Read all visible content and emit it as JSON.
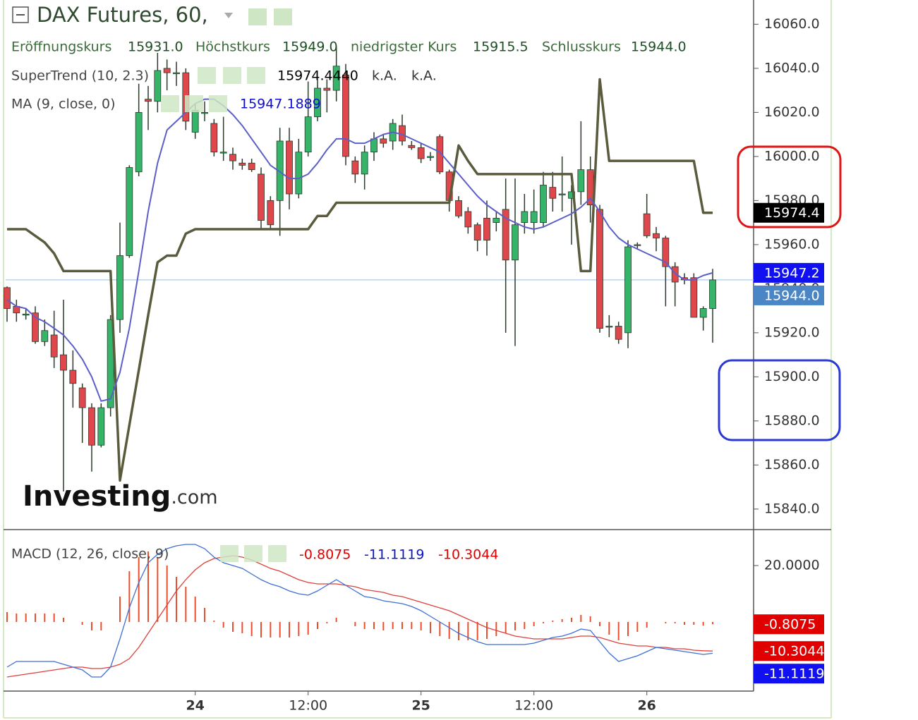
{
  "header": {
    "title": "DAX Futures, 60,",
    "ohlc": [
      {
        "label": "Eröffnungskurs",
        "value_label": "15931.0"
      },
      {
        "label": "Höchstkurs",
        "value_label": "15949.0"
      },
      {
        "label": "niedrigster Kurs",
        "value_label": "15915.5"
      },
      {
        "label": "Schlusskurs",
        "value_label": "15944.0"
      }
    ]
  },
  "watermark": {
    "brand": "Investing",
    "suffix": ".com"
  },
  "chart_data": [
    {
      "type": "candlestick",
      "categories": [
        null,
        null,
        null,
        null,
        null,
        null,
        null,
        null,
        null,
        null,
        null,
        null,
        null,
        null,
        null,
        null,
        null,
        null,
        null,
        null,
        "24",
        null,
        null,
        null,
        null,
        null,
        null,
        null,
        null,
        null,
        null,
        null,
        "12:00",
        null,
        null,
        null,
        null,
        null,
        null,
        null,
        null,
        null,
        null,
        null,
        "25",
        null,
        null,
        null,
        null,
        null,
        null,
        null,
        null,
        null,
        null,
        null,
        "12:00",
        null,
        null,
        null,
        null,
        null,
        null,
        null,
        null,
        null,
        null,
        null,
        "26",
        null,
        null,
        null,
        null,
        null,
        null,
        null
      ],
      "open": [
        15940.5,
        15932,
        15928,
        15929,
        15916,
        15919,
        15910,
        15903,
        15895,
        15886,
        15869,
        15886,
        15926,
        15955,
        15993,
        16026,
        16025,
        16040,
        16038,
        16038,
        16011,
        16020,
        16015,
        16002,
        16001,
        15997,
        15997,
        15992,
        15980,
        15980,
        16007,
        15983,
        16002,
        16018,
        16031,
        16030,
        16037,
        15998,
        15992,
        16002,
        16008,
        16007,
        16014,
        16005,
        16004,
        16000,
        16009,
        15993,
        15980,
        15975,
        15969,
        15972,
        15970,
        15976,
        15953,
        15970,
        15970,
        15970,
        15986,
        15983,
        15981,
        15984,
        15994,
        15976,
        15923,
        15923,
        15920,
        15960,
        15974,
        15965,
        15963,
        15950,
        15945,
        15945,
        15927,
        15931
      ],
      "high": [
        15941,
        15935,
        15931,
        15932,
        15926,
        15930,
        15935,
        15912,
        15897,
        15888,
        15888,
        15928,
        15970,
        15996,
        16033,
        16032,
        16047,
        16044,
        16043,
        16040,
        16024,
        16025,
        16017,
        16018,
        16004,
        15999,
        15999,
        15995,
        15982,
        16013,
        16013,
        16008,
        16034,
        16035,
        16035,
        16050,
        16042,
        16000,
        16005,
        16011,
        16010,
        16017,
        16019,
        16007,
        16006,
        16002,
        16010,
        15994,
        15982,
        15977,
        15970,
        15980,
        15975,
        15990,
        15990,
        15983,
        15985,
        15993,
        15993,
        16000,
        15987,
        16016,
        16000,
        15978,
        15928,
        15925,
        15962,
        15961,
        15983,
        15968,
        15964,
        15952,
        15947,
        15947,
        15932,
        15949
      ],
      "low": [
        15925,
        15925,
        15926,
        15915,
        15914,
        15904,
        15848,
        15886,
        15870,
        15857,
        15868,
        15882,
        15920,
        15954,
        15991,
        16012,
        16020,
        16030,
        16032,
        16012,
        16008,
        16016,
        16000,
        15998,
        15994,
        15994,
        15993,
        15967,
        15967,
        15964,
        15976,
        15981,
        16000,
        16016,
        16020,
        16025,
        15996,
        15988,
        15985,
        15998,
        16004,
        16003,
        16005,
        16003,
        15997,
        15998,
        15992,
        15975,
        15972,
        15965,
        15957,
        15955,
        15966,
        15920,
        15914,
        15965,
        15965,
        15968,
        15975,
        15975,
        15960,
        15978,
        15970,
        15920,
        15918,
        15915,
        15913,
        15958,
        15963,
        15957,
        15932,
        15932,
        15942,
        15927,
        15921,
        15915.5
      ],
      "close": [
        15931,
        15929,
        15928.5,
        15916,
        15921,
        15909,
        15903,
        15897,
        15886,
        15869,
        15886,
        15926,
        15955,
        15995,
        16020,
        16025,
        16039,
        16038,
        16038,
        16016,
        16021,
        16020,
        16002,
        16002,
        15998,
        15996,
        15994,
        15971,
        15969,
        16007,
        15983,
        16002,
        16018,
        16031,
        16030,
        16041,
        16000,
        15992,
        16002,
        16008,
        16006,
        16015,
        16007,
        16004,
        15999,
        16000,
        15993,
        15980,
        15973,
        15968,
        15962,
        15962,
        15972,
        15953,
        15969,
        15975,
        15975,
        15987,
        15981,
        15983,
        15984,
        15994,
        15978,
        15922,
        15923,
        15917,
        15959,
        15960,
        15964,
        15963,
        15950,
        15943,
        15944,
        15927,
        15931,
        15944
      ],
      "up_color": "#35b46a",
      "down_color": "#e0474c",
      "close_last_label": "15944.0",
      "close_tag_color": "#4a86c5",
      "series": [
        {
          "name": "SuperTrend (10, 2.3)",
          "color": "#5a5a3c",
          "tag_color": "#000000",
          "values": [
            15967,
            15967,
            15967,
            15964,
            15961,
            15956,
            15948,
            15948,
            15948,
            15948,
            15948,
            15948,
            15853,
            15878,
            15903,
            15928,
            15952,
            15955,
            15955,
            15965,
            15967,
            15967,
            15967,
            15967,
            15967,
            15967,
            15967,
            15967,
            15967,
            15967,
            15967,
            15967,
            15967,
            15973,
            15973,
            15979,
            15979,
            15979,
            15979,
            15979,
            15979,
            15979,
            15979,
            15979,
            15979,
            15979,
            15979,
            15979,
            16005,
            15998,
            15992,
            15992,
            15992,
            15992,
            15992,
            15992,
            15992,
            15992,
            15992,
            15992,
            15992,
            15948,
            15948,
            16035,
            15998,
            15998,
            15998,
            15998,
            15998,
            15998,
            15998,
            15998,
            15998,
            15998,
            15974.444,
            15974.444
          ],
          "readouts": [
            "15974.4440",
            "k.A.",
            "k.A."
          ],
          "last_label": "15974.4"
        },
        {
          "name": "MA (9, close, 0)",
          "color": "#5b5fc7",
          "tag_color": "#1010f0",
          "values": [
            15935,
            15932,
            15931,
            15927,
            15925,
            15922,
            15919,
            15914,
            15908,
            15900,
            15889,
            15890,
            15902,
            15922,
            15948,
            15975,
            15997,
            16012,
            16016,
            16020,
            16024,
            16026,
            16026,
            16023,
            16019,
            16014,
            16008,
            16002,
            15996,
            15993,
            15990,
            15990,
            15992,
            15997,
            16003,
            16008,
            16008,
            16006,
            16006,
            16008,
            16010,
            16011,
            16010,
            16008,
            16006,
            16004,
            16002,
            15997,
            15992,
            15987,
            15982,
            15978,
            15975,
            15972,
            15970,
            15968,
            15967,
            15968,
            15970,
            15972,
            15974,
            15977,
            15981,
            15975,
            15968,
            15963,
            15960,
            15958,
            15956,
            15954,
            15952,
            15947,
            15944,
            15944,
            15946,
            15947.1889
          ],
          "readouts": [
            "15947.1889"
          ],
          "last_label": "15947.2"
        }
      ],
      "ylim": [
        15831,
        16071
      ],
      "yticks": [
        {
          "value": 15840,
          "label": "15840.0"
        },
        {
          "value": 15860,
          "label": "15860.0"
        },
        {
          "value": 15880,
          "label": "15880.0"
        },
        {
          "value": 15900,
          "label": "15900.0"
        },
        {
          "value": 15920,
          "label": "15920.0"
        },
        {
          "value": 15940,
          "label": "15940.0"
        },
        {
          "value": 15960,
          "label": "15960.0"
        },
        {
          "value": 15980,
          "label": "15980.0"
        },
        {
          "value": 16000,
          "label": "16000.0"
        },
        {
          "value": 16020,
          "label": "16020.0"
        },
        {
          "value": 16040,
          "label": "16040.0"
        },
        {
          "value": 16060,
          "label": "16060.0"
        }
      ]
    },
    {
      "type": "macd",
      "title": "MACD (12, 26, close, 9)",
      "series": [
        {
          "color": "#3d6fd6",
          "tag_color": "#1010f0",
          "last_label": "-11.1119",
          "values": [
            -16,
            -14,
            -14,
            -14,
            -14,
            -14,
            -15,
            -16,
            -17,
            -19.5,
            -19.5,
            -16,
            -6,
            5,
            14,
            21,
            24,
            26,
            27,
            27.5,
            27.5,
            26,
            23,
            21,
            20,
            19,
            17,
            15,
            13.5,
            12.5,
            11,
            10,
            9.5,
            11,
            13,
            15,
            13,
            11,
            9,
            8.5,
            7.5,
            7,
            6.5,
            5.5,
            4,
            2,
            0,
            -2,
            -4,
            -5.5,
            -7,
            -8,
            -8,
            -8,
            -8,
            -8,
            -7.5,
            -6.5,
            -5.5,
            -5,
            -4,
            -2.5,
            -3,
            -7,
            -11,
            -14,
            -13,
            -12,
            -10.5,
            -9,
            -9.5,
            -10,
            -10.5,
            -11,
            -11.5,
            -11.1119
          ]
        },
        {
          "color": "#e0403a",
          "tag_color": "#e00000",
          "last_label": "-10.3044",
          "values": [
            -19.5,
            -19,
            -18.5,
            -18,
            -17.5,
            -17,
            -16.5,
            -16,
            -16,
            -16.5,
            -16.5,
            -16,
            -15,
            -13,
            -9,
            -4,
            1,
            6,
            11,
            15,
            18.5,
            21,
            22.5,
            23,
            23.5,
            23,
            22,
            20.5,
            19,
            18,
            16.5,
            15,
            14,
            13.5,
            13.5,
            13.5,
            13,
            12.5,
            11.5,
            11,
            10.5,
            9.5,
            9,
            8,
            7,
            6,
            5,
            4,
            2.5,
            1,
            -0.5,
            -2,
            -3,
            -4,
            -5,
            -5.5,
            -6,
            -6,
            -6,
            -6,
            -5.5,
            -5,
            -5,
            -5.5,
            -6.5,
            -7.5,
            -8,
            -8.5,
            -8.5,
            -9,
            -9,
            -9.5,
            -9.5,
            -10,
            -10.2,
            -10.3044
          ]
        },
        {
          "color": "#e8502d",
          "tag_color": "#e00000",
          "last_label": "-0.8075",
          "values": [
            3.5,
            3,
            3,
            3,
            3,
            3,
            1.5,
            0,
            -1,
            -3,
            -3,
            0,
            9,
            18,
            23,
            25,
            23,
            20,
            16,
            12.5,
            9,
            5,
            0.5,
            -2,
            -3.5,
            -4,
            -5,
            -5.5,
            -5.5,
            -5.5,
            -5.5,
            -5,
            -4.5,
            -2.5,
            -0.5,
            1.5,
            0,
            -1.5,
            -2.5,
            -2.5,
            -3,
            -2.5,
            -2.5,
            -2.5,
            -3,
            -4,
            -5,
            -6,
            -6.5,
            -6.5,
            -6.5,
            -6,
            -5,
            -4,
            -3,
            -2.5,
            -1.5,
            -0.5,
            0.5,
            1,
            1.5,
            2.5,
            2,
            -1.5,
            -4.5,
            -6.5,
            -5,
            -3.5,
            -2,
            0,
            -0.5,
            -0.5,
            -1,
            -1,
            -1.3,
            -0.8075
          ]
        }
      ],
      "ylim": [
        -24.5,
        32.5
      ],
      "yticks": [
        {
          "value": 20,
          "label": "20.0000"
        }
      ]
    }
  ]
}
